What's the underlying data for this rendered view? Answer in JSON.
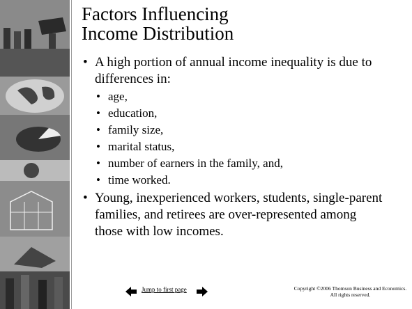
{
  "slide": {
    "title": "Factors Influencing Income Distribution",
    "bullets": [
      {
        "text": "A high portion of annual income inequality is due to differences in:",
        "subbullets": [
          "age,",
          "education,",
          "family size,",
          "marital status,",
          "number of earners in the family, and,",
          "time worked."
        ]
      },
      {
        "text": "Young, inexperienced workers, students, single-parent families, and retirees are over-represented among those with low incomes."
      }
    ],
    "footer": {
      "link": "Jump to first page",
      "copyright": "Copyright ©2006  Thomson Business and Economics. All rights reserved."
    }
  }
}
